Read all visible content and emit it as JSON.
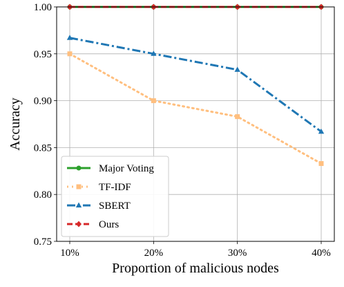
{
  "chart_data": {
    "type": "line",
    "title": "",
    "xlabel": "Proportion of malicious nodes",
    "ylabel": "Accuracy",
    "categories": [
      "10%",
      "20%",
      "30%",
      "40%"
    ],
    "ylim": [
      0.75,
      1.0
    ],
    "yticks": [
      "0.75",
      "0.80",
      "0.85",
      "0.90",
      "0.95",
      "1.00"
    ],
    "grid": true,
    "legend_position": "lower-left",
    "series": [
      {
        "name": "Major Voting",
        "values": [
          1.0,
          1.0,
          1.0,
          1.0
        ],
        "color": "#2ca02c",
        "linestyle": "solid",
        "marker": "circle"
      },
      {
        "name": "TF-IDF",
        "values": [
          0.95,
          0.9,
          0.883,
          0.833
        ],
        "color": "#ffbf7f",
        "linestyle": "dotted",
        "marker": "square"
      },
      {
        "name": "SBERT",
        "values": [
          0.967,
          0.95,
          0.933,
          0.867
        ],
        "color": "#1f77b4",
        "linestyle": "dashdot",
        "marker": "triangle"
      },
      {
        "name": "Ours",
        "values": [
          1.0,
          1.0,
          1.0,
          1.0
        ],
        "color": "#d62728",
        "linestyle": "dashed",
        "marker": "diamond"
      }
    ]
  }
}
